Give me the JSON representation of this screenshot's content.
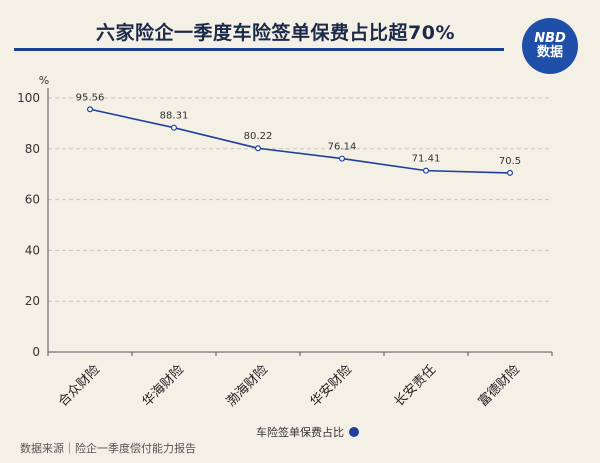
{
  "title": "六家险企一季度车险签单保费占比超70%",
  "logo": {
    "line1": "NBD",
    "line2": "数据"
  },
  "source": "数据来源｜险企一季度偿付能力报告",
  "colors": {
    "line": "#1f3f9a",
    "title_rule": "#1b3f8f",
    "logo_bg": "#1f4fa8"
  },
  "chart_data": {
    "type": "line",
    "title": "六家险企一季度车险签单保费占比超70%",
    "ylabel": "%",
    "xlabel": "",
    "categories": [
      "合众财险",
      "华海财险",
      "渤海财险",
      "华安财险",
      "长安责任",
      "富德财险"
    ],
    "series": [
      {
        "name": "车险签单保费占比",
        "values": [
          95.56,
          88.31,
          80.22,
          76.14,
          71.41,
          70.5
        ]
      }
    ],
    "data_labels": [
      "95.56",
      "88.31",
      "80.22",
      "76.14",
      "71.41",
      "70.5"
    ],
    "ylim": [
      0,
      100
    ],
    "yticks": [
      "0",
      "20",
      "40",
      "60",
      "80",
      "100"
    ],
    "grid": true,
    "legend_position": "bottom"
  }
}
